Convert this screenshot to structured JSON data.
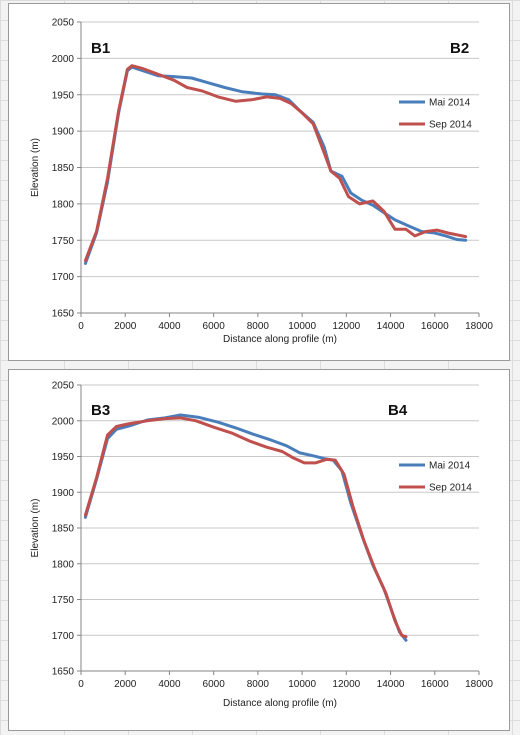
{
  "chart_data": [
    {
      "type": "line",
      "corner_labels": [
        "B1",
        "B2"
      ],
      "xlabel": "Distance along profile (m)",
      "ylabel": "Elevation (m)",
      "xlim": [
        0,
        18000
      ],
      "ylim": [
        1650,
        2050
      ],
      "xticks": [
        0,
        2000,
        4000,
        6000,
        8000,
        10000,
        12000,
        14000,
        16000,
        18000
      ],
      "yticks": [
        1650,
        1700,
        1750,
        1800,
        1850,
        1900,
        1950,
        2000,
        2050
      ],
      "legend_position": "right",
      "series": [
        {
          "name": "Mai 2014",
          "color": "#4a7ebb",
          "points": [
            [
              200,
              1718
            ],
            [
              700,
              1760
            ],
            [
              1200,
              1830
            ],
            [
              1700,
              1925
            ],
            [
              2100,
              1983
            ],
            [
              2300,
              1988
            ],
            [
              2800,
              1983
            ],
            [
              3500,
              1976
            ],
            [
              4200,
              1975
            ],
            [
              5000,
              1973
            ],
            [
              5800,
              1966
            ],
            [
              6500,
              1960
            ],
            [
              7300,
              1954
            ],
            [
              8200,
              1951
            ],
            [
              8800,
              1950
            ],
            [
              9400,
              1943
            ],
            [
              9900,
              1928
            ],
            [
              10500,
              1912
            ],
            [
              11000,
              1878
            ],
            [
              11300,
              1845
            ],
            [
              11800,
              1838
            ],
            [
              12200,
              1815
            ],
            [
              12700,
              1805
            ],
            [
              13200,
              1798
            ],
            [
              13700,
              1788
            ],
            [
              14200,
              1778
            ],
            [
              14800,
              1770
            ],
            [
              15400,
              1762
            ],
            [
              16000,
              1760
            ],
            [
              16500,
              1756
            ],
            [
              17000,
              1751
            ],
            [
              17400,
              1750
            ]
          ]
        },
        {
          "name": "Sep 2014",
          "color": "#c0504d",
          "points": [
            [
              200,
              1722
            ],
            [
              700,
              1762
            ],
            [
              1200,
              1835
            ],
            [
              1700,
              1928
            ],
            [
              2100,
              1985
            ],
            [
              2300,
              1990
            ],
            [
              2800,
              1986
            ],
            [
              3500,
              1978
            ],
            [
              4200,
              1970
            ],
            [
              4800,
              1960
            ],
            [
              5500,
              1955
            ],
            [
              6200,
              1947
            ],
            [
              7000,
              1941
            ],
            [
              7700,
              1943
            ],
            [
              8400,
              1947
            ],
            [
              9000,
              1945
            ],
            [
              9500,
              1938
            ],
            [
              10000,
              1925
            ],
            [
              10500,
              1910
            ],
            [
              11000,
              1870
            ],
            [
              11300,
              1845
            ],
            [
              11700,
              1835
            ],
            [
              12100,
              1810
            ],
            [
              12600,
              1800
            ],
            [
              13200,
              1804
            ],
            [
              13700,
              1790
            ],
            [
              14200,
              1765
            ],
            [
              14700,
              1765
            ],
            [
              15100,
              1756
            ],
            [
              15600,
              1762
            ],
            [
              16100,
              1764
            ],
            [
              16600,
              1760
            ],
            [
              17400,
              1755
            ]
          ]
        }
      ]
    },
    {
      "type": "line",
      "corner_labels": [
        "B3",
        "B4"
      ],
      "xlabel": "Distance along profile (m)",
      "ylabel": "Elevation (m)",
      "xlim": [
        0,
        18000
      ],
      "ylim": [
        1650,
        2050
      ],
      "xticks": [
        0,
        2000,
        4000,
        6000,
        8000,
        10000,
        12000,
        14000,
        16000,
        18000
      ],
      "yticks": [
        1650,
        1700,
        1750,
        1800,
        1850,
        1900,
        1950,
        2000,
        2050
      ],
      "legend_position": "right",
      "series": [
        {
          "name": "Mai 2014",
          "color": "#4a7ebb",
          "points": [
            [
              200,
              1865
            ],
            [
              700,
              1918
            ],
            [
              1200,
              1975
            ],
            [
              1600,
              1988
            ],
            [
              2200,
              1993
            ],
            [
              3000,
              2001
            ],
            [
              3800,
              2004
            ],
            [
              4500,
              2008
            ],
            [
              5300,
              2005
            ],
            [
              6200,
              1998
            ],
            [
              7000,
              1990
            ],
            [
              7800,
              1981
            ],
            [
              8600,
              1973
            ],
            [
              9300,
              1965
            ],
            [
              9900,
              1955
            ],
            [
              10500,
              1951
            ],
            [
              11000,
              1947
            ],
            [
              11400,
              1945
            ],
            [
              11800,
              1930
            ],
            [
              12200,
              1885
            ],
            [
              12700,
              1840
            ],
            [
              13200,
              1798
            ],
            [
              13700,
              1765
            ],
            [
              14100,
              1730
            ],
            [
              14400,
              1705
            ],
            [
              14700,
              1693
            ]
          ]
        },
        {
          "name": "Sep 2014",
          "color": "#c0504d",
          "points": [
            [
              200,
              1868
            ],
            [
              700,
              1920
            ],
            [
              1200,
              1980
            ],
            [
              1600,
              1992
            ],
            [
              2200,
              1996
            ],
            [
              3000,
              2000
            ],
            [
              3800,
              2003
            ],
            [
              4500,
              2004
            ],
            [
              5200,
              2000
            ],
            [
              6000,
              1991
            ],
            [
              6800,
              1983
            ],
            [
              7600,
              1972
            ],
            [
              8400,
              1963
            ],
            [
              9100,
              1957
            ],
            [
              9600,
              1948
            ],
            [
              10100,
              1941
            ],
            [
              10600,
              1941
            ],
            [
              11100,
              1946
            ],
            [
              11500,
              1945
            ],
            [
              11900,
              1925
            ],
            [
              12300,
              1880
            ],
            [
              12800,
              1832
            ],
            [
              13300,
              1792
            ],
            [
              13800,
              1758
            ],
            [
              14200,
              1720
            ],
            [
              14500,
              1700
            ],
            [
              14700,
              1698
            ]
          ]
        }
      ]
    }
  ]
}
